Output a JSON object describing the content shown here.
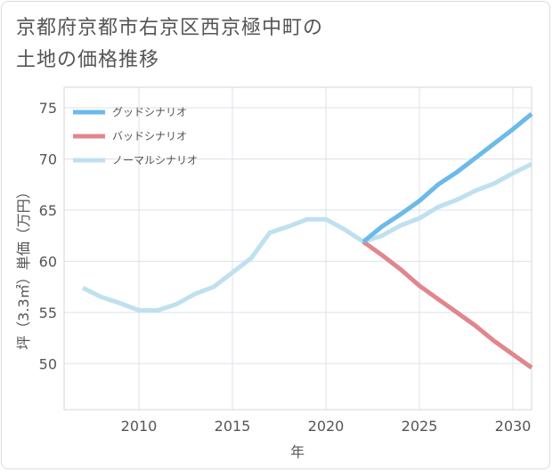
{
  "title_lines": [
    "京都府京都市右京区西京極中町の",
    "土地の価格推移"
  ],
  "chart_data": {
    "type": "line",
    "title": "京都府京都市右京区西京極中町の土地の価格推移",
    "xlabel": "年",
    "ylabel": "坪（3.3㎡）単価（万円）",
    "xlim": [
      2006,
      2031
    ],
    "ylim": [
      45.5,
      77
    ],
    "xticks": [
      2010,
      2015,
      2020,
      2025,
      2030
    ],
    "yticks": [
      50,
      55,
      60,
      65,
      70,
      75
    ],
    "grid": true,
    "legend_position": "top-left",
    "series": [
      {
        "name": "グッドシナリオ",
        "color": "#6bbaea",
        "x": [
          2022,
          2023,
          2024,
          2025,
          2026,
          2027,
          2028,
          2029,
          2030,
          2031
        ],
        "y": [
          61.9,
          63.4,
          64.6,
          65.9,
          67.5,
          68.7,
          70.1,
          71.5,
          72.9,
          74.4
        ]
      },
      {
        "name": "バッドシナリオ",
        "color": "#e0878e",
        "x": [
          2022,
          2023,
          2024,
          2025,
          2026,
          2027,
          2028,
          2029,
          2030,
          2031
        ],
        "y": [
          61.9,
          60.6,
          59.2,
          57.6,
          56.3,
          55.0,
          53.7,
          52.2,
          50.9,
          49.6
        ]
      },
      {
        "name": "ノーマルシナリオ",
        "color": "#bfe0ef",
        "x": [
          2007,
          2008,
          2009,
          2010,
          2011,
          2012,
          2013,
          2014,
          2015,
          2016,
          2017,
          2018,
          2019,
          2020,
          2021,
          2022,
          2023,
          2024,
          2025,
          2026,
          2027,
          2028,
          2029,
          2030,
          2031
        ],
        "y": [
          57.4,
          56.5,
          55.9,
          55.2,
          55.2,
          55.8,
          56.8,
          57.5,
          58.9,
          60.3,
          62.8,
          63.4,
          64.1,
          64.1,
          63.1,
          61.9,
          62.5,
          63.5,
          64.2,
          65.3,
          66.0,
          66.9,
          67.6,
          68.6,
          69.5
        ]
      }
    ]
  }
}
